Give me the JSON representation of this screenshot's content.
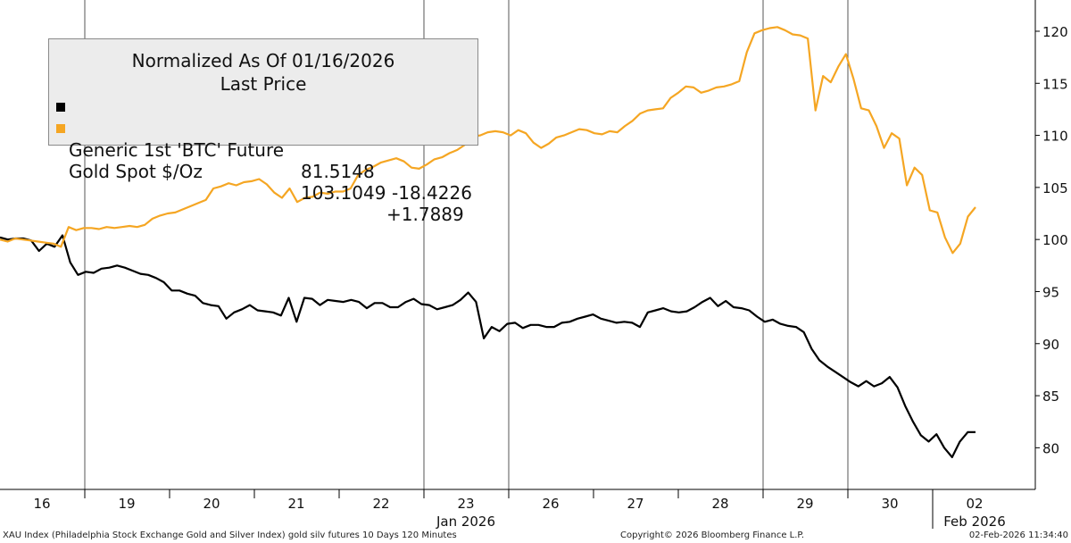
{
  "chart_data": {
    "type": "line",
    "title": "Normalized As Of 01/16/2026",
    "subtitle": "Last Price",
    "ylim": [
      76,
      123
    ],
    "y_ticks": [
      80,
      85,
      90,
      95,
      100,
      105,
      110,
      115,
      120
    ],
    "x_day_labels": [
      "16",
      "19",
      "20",
      "21",
      "22",
      "23",
      "26",
      "27",
      "28",
      "29",
      "30",
      "02"
    ],
    "x_month_labels": [
      "Jan 2026",
      "Feb 2026"
    ],
    "grid": false,
    "legend_position": "top-left",
    "series": [
      {
        "name": "Generic 1st 'BTC' Future",
        "last_price": "81.5148",
        "change": "-18.4226",
        "color": "#000000",
        "values": [
          100.2,
          100.0,
          100.1,
          100.1,
          99.9,
          98.9,
          99.6,
          99.3,
          100.4,
          97.8,
          96.6,
          96.9,
          96.8,
          97.2,
          97.3,
          97.5,
          97.3,
          97.0,
          96.7,
          96.6,
          96.3,
          95.9,
          95.1,
          95.1,
          94.8,
          94.6,
          93.9,
          93.7,
          93.6,
          92.4,
          93.0,
          93.3,
          93.7,
          93.2,
          93.1,
          93.0,
          92.7,
          94.4,
          92.1,
          94.4,
          94.3,
          93.7,
          94.2,
          94.1,
          94.0,
          94.2,
          94.0,
          93.4,
          93.9,
          93.9,
          93.5,
          93.5,
          94.0,
          94.3,
          93.8,
          93.7,
          93.3,
          93.5,
          93.7,
          94.2,
          94.9,
          94.0,
          90.5,
          91.6,
          91.2,
          91.9,
          92.0,
          91.5,
          91.8,
          91.8,
          91.6,
          91.6,
          92.0,
          92.1,
          92.4,
          92.6,
          92.8,
          92.4,
          92.2,
          92.0,
          92.1,
          92.0,
          91.6,
          93.0,
          93.2,
          93.4,
          93.1,
          93.0,
          93.1,
          93.5,
          94.0,
          94.4,
          93.6,
          94.1,
          93.5,
          93.4,
          93.2,
          92.6,
          92.1,
          92.3,
          91.9,
          91.7,
          91.6,
          91.1,
          89.5,
          88.4,
          87.8,
          87.3,
          86.8,
          86.3,
          85.9,
          86.4,
          85.9,
          86.2,
          86.8,
          85.8,
          84.0,
          82.5,
          81.2,
          80.6,
          81.3,
          80.0,
          79.1,
          80.6,
          81.5,
          81.5
        ]
      },
      {
        "name": "Gold Spot $/Oz",
        "last_price": "103.1049",
        "change": "+1.7889",
        "color": "#f5a623",
        "values": [
          100.0,
          99.8,
          100.1,
          100.0,
          99.9,
          99.8,
          99.7,
          99.6,
          99.3,
          101.2,
          100.9,
          101.1,
          101.1,
          101.0,
          101.2,
          101.1,
          101.2,
          101.3,
          101.2,
          101.4,
          102.0,
          102.3,
          102.5,
          102.6,
          102.9,
          103.2,
          103.5,
          103.8,
          104.9,
          105.1,
          105.4,
          105.2,
          105.5,
          105.6,
          105.8,
          105.3,
          104.5,
          104.0,
          104.9,
          103.6,
          104.0,
          104.1,
          104.5,
          104.4,
          104.6,
          104.6,
          104.9,
          106.2,
          106.7,
          107.0,
          107.4,
          107.6,
          107.8,
          107.5,
          106.9,
          106.8,
          107.2,
          107.7,
          107.9,
          108.3,
          108.6,
          109.1,
          109.9,
          110.0,
          110.3,
          110.4,
          110.3,
          110.0,
          110.5,
          110.2,
          109.3,
          108.8,
          109.2,
          109.8,
          110.0,
          110.3,
          110.6,
          110.5,
          110.2,
          110.1,
          110.4,
          110.3,
          110.9,
          111.4,
          112.1,
          112.4,
          112.5,
          112.6,
          113.6,
          114.1,
          114.7,
          114.6,
          114.1,
          114.3,
          114.6,
          114.7,
          114.9,
          115.2,
          118.0,
          119.8,
          120.1,
          120.3,
          120.4,
          120.1,
          119.7,
          119.6,
          119.3,
          112.4,
          115.7,
          115.1,
          116.6,
          117.8,
          115.4,
          112.6,
          112.4,
          110.9,
          108.8,
          110.2,
          109.7,
          105.2,
          106.9,
          106.2,
          102.8,
          102.6,
          100.2,
          98.7,
          99.6,
          102.2,
          103.1
        ]
      }
    ]
  },
  "footer": {
    "left": "XAU Index (Philadelphia Stock Exchange Gold and Silver Index) gold silv futures 10 Days 120 Minutes",
    "center": "Copyright© 2026 Bloomberg Finance L.P.",
    "right": "02-Feb-2026 11:34:40"
  }
}
